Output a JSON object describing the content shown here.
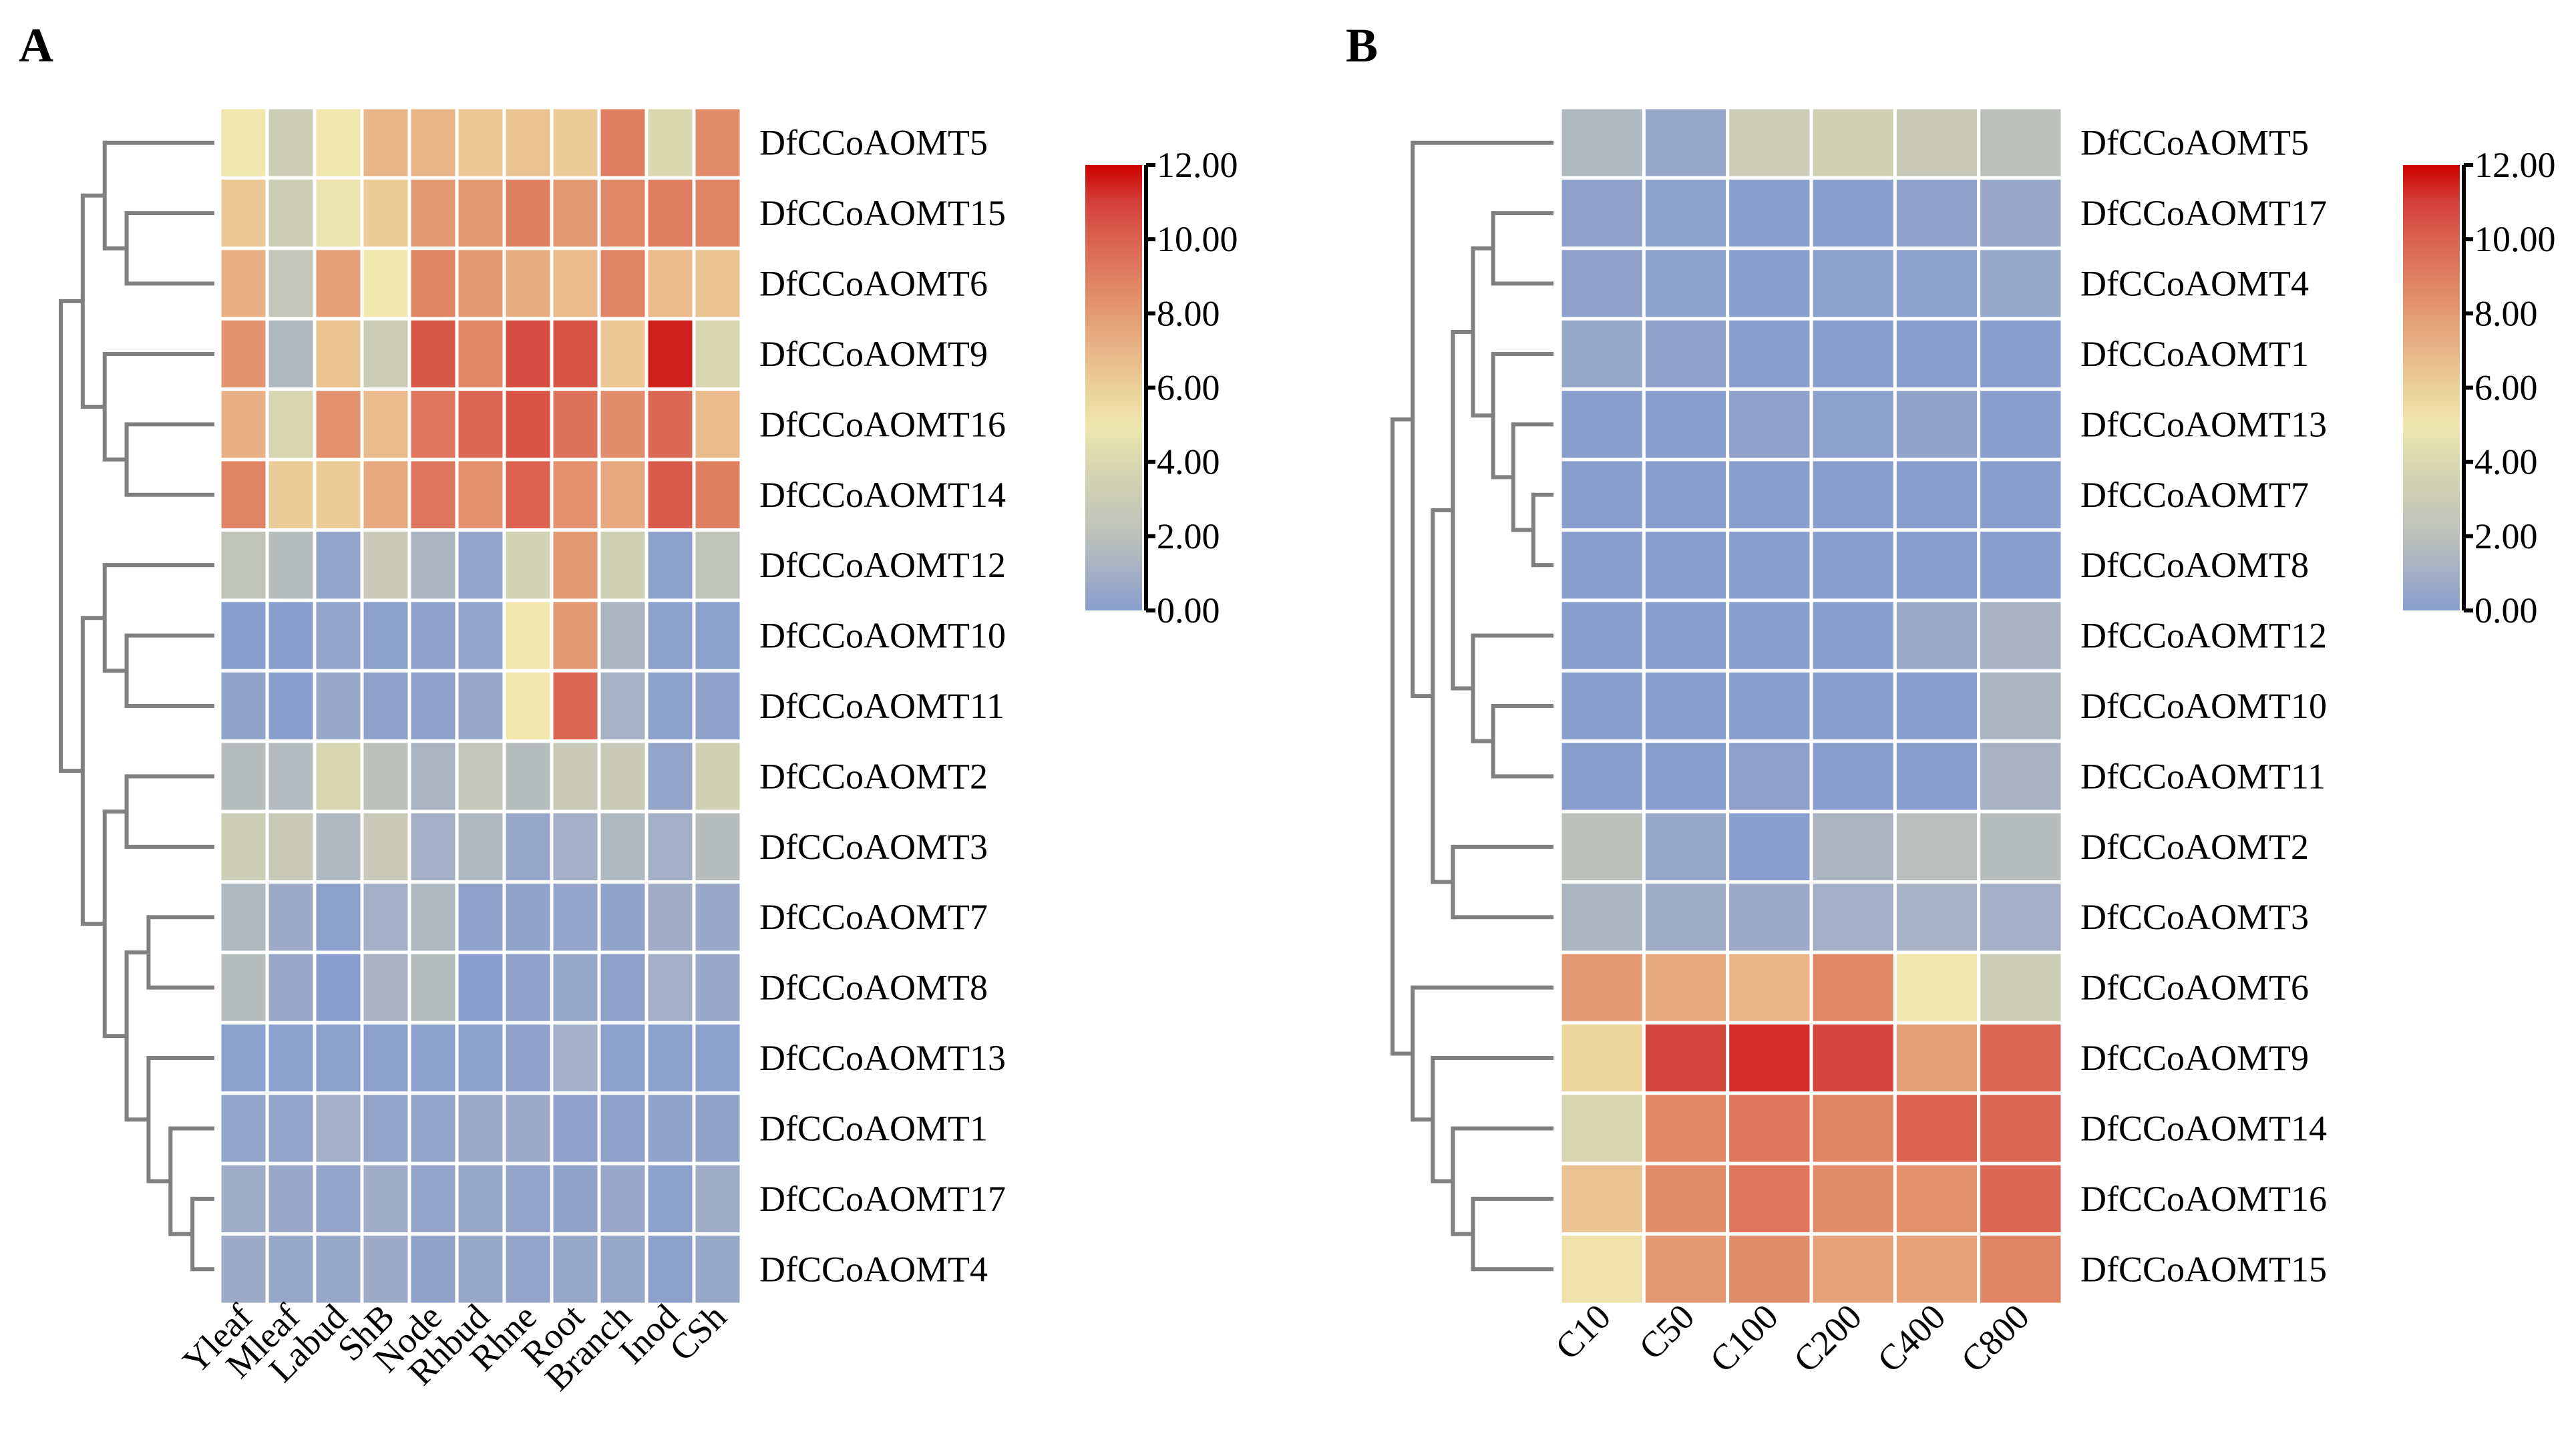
{
  "chart_data": [
    {
      "type": "heatmap",
      "panel_label": "A",
      "columns": [
        "Yleaf",
        "Mleaf",
        "Labud",
        "ShB",
        "Node",
        "Rhbud",
        "Rhne",
        "Root",
        "Branch",
        "Inod",
        "CSh"
      ],
      "rows": [
        "DfCCoAOMT5",
        "DfCCoAOMT15",
        "DfCCoAOMT6",
        "DfCCoAOMT9",
        "DfCCoAOMT16",
        "DfCCoAOMT14",
        "DfCCoAOMT12",
        "DfCCoAOMT10",
        "DfCCoAOMT11",
        "DfCCoAOMT2",
        "DfCCoAOMT3",
        "DfCCoAOMT7",
        "DfCCoAOMT8",
        "DfCCoAOMT13",
        "DfCCoAOMT1",
        "DfCCoAOMT17",
        "DfCCoAOMT4"
      ],
      "values": [
        [
          5.0,
          3.0,
          5.0,
          7.0,
          7.0,
          6.3,
          6.5,
          6.2,
          9.0,
          4.0,
          8.5
        ],
        [
          6.3,
          3.0,
          4.8,
          6.2,
          8.0,
          8.0,
          9.0,
          8.0,
          8.7,
          9.0,
          8.8
        ],
        [
          7.2,
          2.5,
          7.8,
          5.0,
          8.8,
          8.0,
          7.3,
          6.8,
          8.8,
          6.8,
          6.5
        ],
        [
          8.2,
          1.5,
          6.5,
          3.0,
          10.3,
          8.7,
          10.6,
          10.4,
          6.3,
          11.5,
          3.8
        ],
        [
          7.2,
          3.8,
          8.3,
          6.8,
          9.3,
          9.8,
          10.4,
          9.5,
          8.5,
          9.8,
          6.8
        ],
        [
          8.8,
          6.2,
          6.2,
          7.5,
          9.3,
          8.3,
          10.0,
          8.3,
          7.5,
          10.2,
          9.0
        ],
        [
          2.2,
          1.8,
          0.4,
          2.8,
          1.3,
          0.4,
          3.5,
          8.0,
          3.2,
          0.1,
          2.2
        ],
        [
          0.0,
          0.0,
          0.4,
          0.1,
          0.2,
          0.4,
          5.0,
          8.0,
          1.3,
          0.1,
          0.1
        ],
        [
          0.3,
          0.0,
          0.6,
          0.2,
          0.2,
          0.6,
          5.0,
          9.8,
          1.1,
          0.1,
          0.2
        ],
        [
          1.8,
          1.7,
          3.8,
          2.0,
          1.3,
          2.5,
          1.8,
          2.8,
          2.8,
          0.4,
          3.3
        ],
        [
          3.0,
          2.8,
          1.5,
          2.8,
          1.0,
          1.5,
          0.5,
          1.0,
          1.5,
          1.0,
          1.8
        ],
        [
          1.5,
          0.7,
          0.1,
          1.0,
          1.5,
          0.2,
          0.3,
          0.4,
          0.3,
          0.9,
          0.6
        ],
        [
          1.8,
          0.6,
          0.0,
          1.2,
          1.8,
          0.0,
          0.2,
          0.5,
          0.2,
          1.0,
          0.6
        ],
        [
          0.1,
          0.1,
          0.1,
          0.1,
          0.1,
          0.1,
          0.2,
          1.0,
          0.1,
          0.1,
          0.1
        ],
        [
          0.4,
          0.4,
          1.0,
          0.4,
          0.4,
          0.7,
          0.7,
          0.2,
          0.2,
          0.3,
          0.3
        ],
        [
          0.8,
          0.6,
          0.4,
          0.8,
          0.4,
          0.5,
          0.4,
          0.3,
          0.6,
          0.1,
          0.8
        ],
        [
          0.7,
          0.5,
          0.5,
          0.7,
          0.3,
          0.5,
          0.4,
          0.5,
          0.5,
          0.1,
          0.5
        ]
      ],
      "row_dendrogram": {
        "h": 7,
        "c": [
          {
            "h": 6,
            "c": [
              {
                "h": 5,
                "c": [
                  0,
                  {
                    "h": 4,
                    "c": [
                      1,
                      2
                    ]
                  }
                ]
              },
              {
                "h": 5,
                "c": [
                  3,
                  {
                    "h": 4,
                    "c": [
                      4,
                      5
                    ]
                  }
                ]
              }
            ]
          },
          {
            "h": 6,
            "c": [
              {
                "h": 5,
                "c": [
                  6,
                  {
                    "h": 4,
                    "c": [
                      7,
                      8
                    ]
                  }
                ]
              },
              {
                "h": 5,
                "c": [
                  {
                    "h": 4,
                    "c": [
                      9,
                      10
                    ]
                  },
                  {
                    "h": 4,
                    "c": [
                      {
                        "h": 3,
                        "c": [
                          11,
                          12
                        ]
                      },
                      {
                        "h": 3,
                        "c": [
                          13,
                          {
                            "h": 2,
                            "c": [
                              14,
                              {
                                "h": 1,
                                "c": [
                                  15,
                                  16
                                ]
                              }
                            ]
                          }
                        ]
                      }
                    ]
                  }
                ]
              }
            ]
          }
        ]
      },
      "dendrogram_levels": 7,
      "colorbar": {
        "range": [
          0,
          12
        ],
        "ticks": [
          "12.00",
          "10.00",
          "8.00",
          "6.00",
          "4.00",
          "2.00",
          "0.00"
        ]
      }
    },
    {
      "type": "heatmap",
      "panel_label": "B",
      "columns": [
        "C10",
        "C50",
        "C100",
        "C200",
        "C400",
        "C800"
      ],
      "rows": [
        "DfCCoAOMT5",
        "DfCCoAOMT17",
        "DfCCoAOMT4",
        "DfCCoAOMT1",
        "DfCCoAOMT13",
        "DfCCoAOMT7",
        "DfCCoAOMT8",
        "DfCCoAOMT12",
        "DfCCoAOMT10",
        "DfCCoAOMT11",
        "DfCCoAOMT2",
        "DfCCoAOMT3",
        "DfCCoAOMT6",
        "DfCCoAOMT9",
        "DfCCoAOMT14",
        "DfCCoAOMT16",
        "DfCCoAOMT15"
      ],
      "values": [
        [
          1.5,
          0.5,
          3.0,
          3.3,
          2.8,
          2.0
        ],
        [
          0.2,
          0.1,
          0.0,
          0.0,
          0.2,
          0.6
        ],
        [
          0.2,
          0.1,
          0.0,
          0.1,
          0.1,
          0.5
        ],
        [
          0.5,
          0.2,
          0.0,
          0.0,
          0.0,
          0.0
        ],
        [
          0.0,
          0.0,
          0.2,
          0.1,
          0.3,
          0.0
        ],
        [
          0.0,
          0.0,
          0.0,
          0.0,
          0.0,
          0.0
        ],
        [
          0.0,
          0.0,
          0.0,
          0.0,
          0.0,
          0.0
        ],
        [
          0.0,
          0.0,
          0.0,
          0.0,
          0.7,
          1.2
        ],
        [
          0.0,
          0.0,
          0.0,
          0.0,
          0.0,
          1.3
        ],
        [
          0.0,
          0.0,
          0.2,
          0.0,
          0.0,
          1.2
        ],
        [
          2.0,
          0.5,
          0.0,
          1.3,
          1.9,
          1.8
        ],
        [
          1.3,
          0.8,
          0.7,
          1.0,
          1.1,
          1.0
        ],
        [
          8.0,
          7.5,
          7.0,
          8.7,
          5.0,
          3.0
        ],
        [
          5.8,
          10.8,
          11.3,
          10.8,
          7.8,
          9.8
        ],
        [
          3.8,
          8.7,
          9.3,
          8.8,
          10.0,
          9.8
        ],
        [
          6.5,
          8.5,
          9.3,
          8.5,
          8.3,
          9.8
        ],
        [
          5.2,
          8.0,
          8.5,
          7.7,
          7.7,
          8.8
        ]
      ],
      "row_dendrogram": {
        "h": 8,
        "c": [
          {
            "h": 7,
            "c": [
              0,
              {
                "h": 6,
                "c": [
                  {
                    "h": 5,
                    "c": [
                      {
                        "h": 4,
                        "c": [
                          {
                            "h": 3,
                            "c": [
                              1,
                              2
                            ]
                          },
                          {
                            "h": 3,
                            "c": [
                              3,
                              {
                                "h": 2,
                                "c": [
                                  4,
                                  {
                                    "h": 1,
                                    "c": [
                                      5,
                                      6
                                    ]
                                  }
                                ]
                              }
                            ]
                          }
                        ]
                      },
                      {
                        "h": 4,
                        "c": [
                          7,
                          {
                            "h": 3,
                            "c": [
                              8,
                              9
                            ]
                          }
                        ]
                      }
                    ]
                  },
                  {
                    "h": 5,
                    "c": [
                      10,
                      11
                    ]
                  }
                ]
              }
            ]
          },
          {
            "h": 7,
            "c": [
              12,
              {
                "h": 6,
                "c": [
                  13,
                  {
                    "h": 5,
                    "c": [
                      14,
                      {
                        "h": 4,
                        "c": [
                          15,
                          16
                        ]
                      }
                    ]
                  }
                ]
              }
            ]
          }
        ]
      },
      "dendrogram_levels": 8,
      "colorbar": {
        "range": [
          0,
          12
        ],
        "ticks": [
          "12.00",
          "10.00",
          "8.00",
          "6.00",
          "4.00",
          "2.00",
          "0.00"
        ]
      }
    }
  ],
  "colors": {
    "scale": [
      "#8a9ecd",
      "#bcc0bb",
      "#d9d9b0",
      "#efe7ae",
      "#ecd09a",
      "#e8b589",
      "#e39a74",
      "#df7f62",
      "#da6250",
      "#d4403a",
      "#cc0000"
    ],
    "scale_stops": [
      0,
      2,
      4,
      5,
      6,
      7,
      8,
      9,
      10,
      11,
      12
    ],
    "dendrogram": "#808080"
  }
}
